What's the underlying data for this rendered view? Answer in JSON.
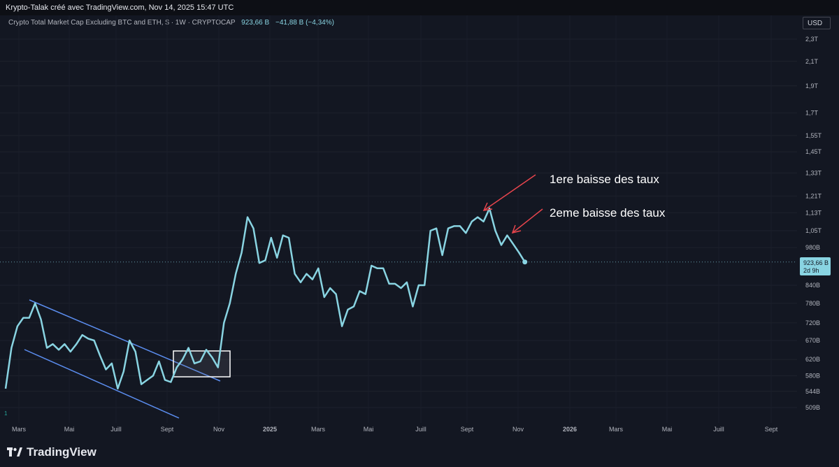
{
  "header": {
    "title": "Krypto-Talak créé avec TradingView.com, Nov 14, 2025 15:47 UTC"
  },
  "legend": {
    "symbol": "Crypto Total Market Cap Excluding BTC and ETH, $ · 1W · CRYPTOCAP",
    "price": "923,66 B",
    "change": "−41,88 B (−4,34%)"
  },
  "currency_button": "USD",
  "brand": {
    "name": "TradingView",
    "icon": "tradingview-logo-icon"
  },
  "price_tag": {
    "value": "923,66 B",
    "countdown": "2d 9h"
  },
  "annotations": [
    {
      "text": "1ere baisse des taux"
    },
    {
      "text": "2eme baisse des taux"
    }
  ],
  "colors": {
    "background": "#131722",
    "line": "#89d4e2",
    "channel": "#5b8def",
    "arrow": "#e8454d",
    "box": "#ffffff"
  },
  "chart_data": {
    "type": "line",
    "series": [
      {
        "values": [
          550,
          650,
          710,
          735,
          735,
          780,
          730,
          650,
          660,
          645,
          660,
          640,
          660,
          685,
          675,
          670,
          630,
          595,
          610,
          550,
          590,
          670,
          640,
          560,
          570,
          580,
          615,
          570,
          565,
          600,
          620,
          650,
          610,
          615,
          645,
          625,
          600,
          720,
          780,
          880,
          960,
          1110,
          1060,
          920,
          930,
          1020,
          940,
          1030,
          1020,
          880,
          850,
          880,
          860,
          900,
          800,
          830,
          810,
          710,
          760,
          770,
          820,
          810,
          910,
          900,
          900,
          845,
          845,
          830,
          850,
          770,
          840,
          840,
          1050,
          1060,
          950,
          1060,
          1070,
          1070,
          1040,
          1090,
          1110,
          1090,
          1150,
          1050,
          990,
          1030,
          995,
          960,
          923.66
        ]
      }
    ],
    "x_start": "2024-01-28",
    "x_interval": "1W",
    "x_ticks": [
      "Mars",
      "Mai",
      "Juill",
      "Sept",
      "Nov",
      "2025",
      "Mars",
      "Mai",
      "Juill",
      "Sept",
      "Nov",
      "2026",
      "Mars",
      "Mai",
      "Juill",
      "Sept"
    ],
    "y_scale": "log",
    "y_ticks": [
      {
        "value": 509,
        "label": "509B"
      },
      {
        "value": 544,
        "label": "544B"
      },
      {
        "value": 580,
        "label": "580B"
      },
      {
        "value": 620,
        "label": "620B"
      },
      {
        "value": 670,
        "label": "670B"
      },
      {
        "value": 720,
        "label": "720B"
      },
      {
        "value": 780,
        "label": "780B"
      },
      {
        "value": 840,
        "label": "840B"
      },
      {
        "value": 980,
        "label": "980B"
      },
      {
        "value": 1050,
        "label": "1,05T"
      },
      {
        "value": 1130,
        "label": "1,13T"
      },
      {
        "value": 1210,
        "label": "1,21T"
      },
      {
        "value": 1330,
        "label": "1,33T"
      },
      {
        "value": 1450,
        "label": "1,45T"
      },
      {
        "value": 1550,
        "label": "1,55T"
      },
      {
        "value": 1700,
        "label": "1,7T"
      },
      {
        "value": 1900,
        "label": "1,9T"
      },
      {
        "value": 2100,
        "label": "2,1T"
      },
      {
        "value": 2300,
        "label": "2,3T"
      }
    ],
    "last_value": 923.66,
    "grid": true
  }
}
